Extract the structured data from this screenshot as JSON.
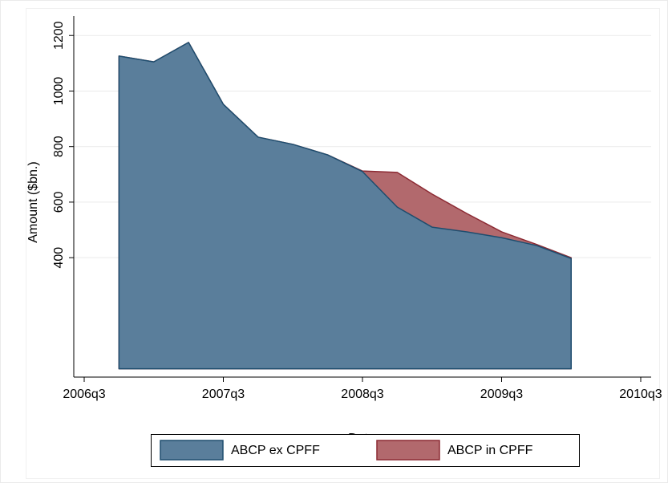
{
  "chart_data": {
    "type": "stacked-area",
    "xlabel": "Date",
    "ylabel": "Amount ($bn.)",
    "x": [
      187,
      188,
      189,
      190,
      191,
      192,
      193,
      194,
      195,
      196,
      197,
      198,
      199,
      200
    ],
    "series": [
      {
        "name": "ABCP ex CPFF",
        "color": "#5a7e9b",
        "edge": "#1e4d6e",
        "values": [
          1126,
          1105,
          1175,
          952,
          834,
          808,
          770,
          710,
          582,
          510,
          493,
          472,
          444,
          397
        ]
      },
      {
        "name": "ABCP in CPFF",
        "color": "#b2696d",
        "edge": "#8c2a33",
        "values": [
          0,
          0,
          0,
          0,
          0,
          0,
          0,
          2,
          125,
          119,
          66,
          21,
          4,
          3
        ]
      }
    ],
    "xlim": [
      185.7,
      202.3
    ],
    "xticks": [
      {
        "value": 186,
        "label": "2006q3"
      },
      {
        "value": 190,
        "label": "2007q3"
      },
      {
        "value": 194,
        "label": "2008q3"
      },
      {
        "value": 198,
        "label": "2009q3"
      },
      {
        "value": 202,
        "label": "2010q3"
      }
    ],
    "ylim": [
      -30,
      1270
    ],
    "yticks": [
      400,
      600,
      800,
      1000,
      1200
    ],
    "grid": true,
    "legend": "bottom"
  }
}
